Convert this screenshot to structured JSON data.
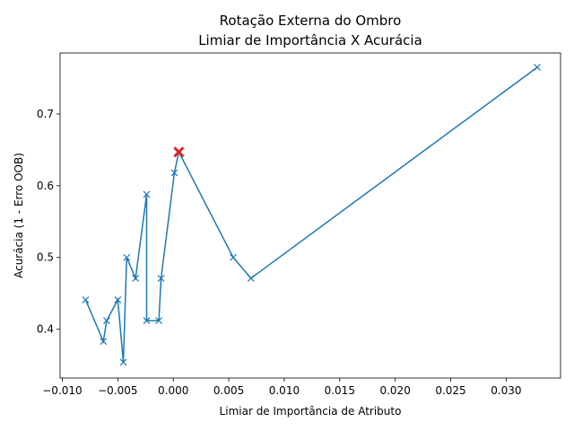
{
  "chart_data": {
    "type": "line",
    "title": "Rotação Externa do Ombro",
    "subtitle": "Limiar de Importância X Acurácia",
    "xlabel": "Limiar de Importância de Atributo",
    "ylabel": "Acurácia (1 - Erro OOB)",
    "xlim": [
      -0.0102,
      0.0349
    ],
    "ylim": [
      0.332,
      0.785
    ],
    "xticks": [
      -0.01,
      -0.005,
      0.0,
      0.005,
      0.01,
      0.015,
      0.02,
      0.025,
      0.03
    ],
    "xtick_labels": [
      "−0.010",
      "−0.005",
      "0.000",
      "0.005",
      "0.010",
      "0.015",
      "0.020",
      "0.025",
      "0.030"
    ],
    "yticks": [
      0.4,
      0.5,
      0.6,
      0.7
    ],
    "ytick_labels": [
      "0.4",
      "0.5",
      "0.6",
      "0.7"
    ],
    "grid": false,
    "series": [
      {
        "color": "#1f77b4",
        "marker": "x",
        "x": [
          -0.0079,
          -0.0063,
          -0.006,
          -0.005,
          -0.0045,
          -0.0042,
          -0.0034,
          -0.0024,
          -0.0024,
          -0.0013,
          -0.0011,
          0.0001,
          0.0005,
          0.0054,
          0.007,
          0.0328
        ],
        "y": [
          0.441,
          0.383,
          0.412,
          0.441,
          0.354,
          0.5,
          0.471,
          0.588,
          0.412,
          0.412,
          0.471,
          0.618,
          0.647,
          0.5,
          0.471,
          0.765
        ]
      }
    ],
    "highlight": {
      "x": 0.0005,
      "y": 0.647,
      "color": "#d62728",
      "marker": "x"
    }
  }
}
